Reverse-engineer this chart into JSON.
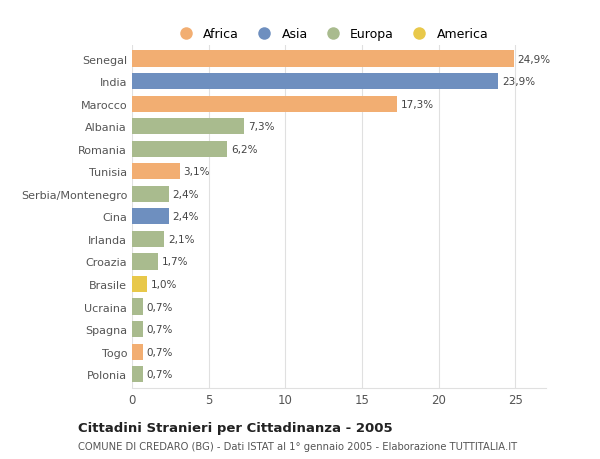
{
  "categories": [
    "Senegal",
    "India",
    "Marocco",
    "Albania",
    "Romania",
    "Tunisia",
    "Serbia/Montenegro",
    "Cina",
    "Irlanda",
    "Croazia",
    "Brasile",
    "Ucraina",
    "Spagna",
    "Togo",
    "Polonia"
  ],
  "values": [
    24.9,
    23.9,
    17.3,
    7.3,
    6.2,
    3.1,
    2.4,
    2.4,
    2.1,
    1.7,
    1.0,
    0.7,
    0.7,
    0.7,
    0.7
  ],
  "labels": [
    "24,9%",
    "23,9%",
    "17,3%",
    "7,3%",
    "6,2%",
    "3,1%",
    "2,4%",
    "2,4%",
    "2,1%",
    "1,7%",
    "1,0%",
    "0,7%",
    "0,7%",
    "0,7%",
    "0,7%"
  ],
  "continents": [
    "Africa",
    "Asia",
    "Africa",
    "Europa",
    "Europa",
    "Africa",
    "Europa",
    "Asia",
    "Europa",
    "Europa",
    "America",
    "Europa",
    "Europa",
    "Africa",
    "Europa"
  ],
  "colors": {
    "Africa": "#F2AE72",
    "Asia": "#6E8FBF",
    "Europa": "#A9BB8E",
    "America": "#E8C84A"
  },
  "legend_order": [
    "Africa",
    "Asia",
    "Europa",
    "America"
  ],
  "title": "Cittadini Stranieri per Cittadinanza - 2005",
  "subtitle": "COMUNE DI CREDARO (BG) - Dati ISTAT al 1° gennaio 2005 - Elaborazione TUTTITALIA.IT",
  "xlim": [
    0,
    27
  ],
  "xticks": [
    0,
    5,
    10,
    15,
    20,
    25
  ],
  "background_color": "#ffffff",
  "grid_color": "#e0e0e0",
  "label_fontsize": 7.5,
  "ytick_fontsize": 8.0,
  "xtick_fontsize": 8.5
}
